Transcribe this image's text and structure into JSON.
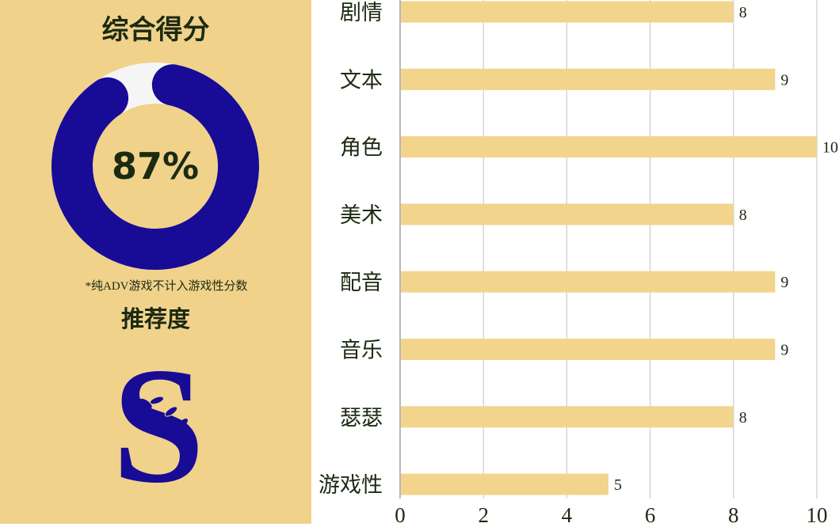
{
  "score_panel": {
    "title": "综合得分",
    "percent_label": "87%",
    "percent_value": 87,
    "note": "*纯ADV游戏不计入游戏性分数",
    "recommend_title": "推荐度",
    "recommend_logo_letter": "S"
  },
  "colors": {
    "panel_bg": "#f0d28b",
    "donut_fill": "#180b96",
    "donut_track": "#f5f5f5",
    "bar": "#f2d48d",
    "text_dark": "#1c2a12",
    "grid": "#cccccc"
  },
  "chart_data": {
    "type": "bar",
    "orientation": "horizontal",
    "categories": [
      "剧情",
      "文本",
      "角色",
      "美术",
      "配音",
      "音乐",
      "瑟瑟",
      "游戏性"
    ],
    "values": [
      8,
      9,
      10,
      8,
      9,
      9,
      8,
      5
    ],
    "value_labels": [
      "8",
      "9",
      "10",
      "8",
      "9",
      "9",
      "8",
      "5"
    ],
    "xlim": [
      0,
      10
    ],
    "x_ticks": [
      "0",
      "2",
      "4",
      "6",
      "8",
      "10"
    ],
    "grid": true,
    "title": "",
    "xlabel": "",
    "ylabel": ""
  }
}
